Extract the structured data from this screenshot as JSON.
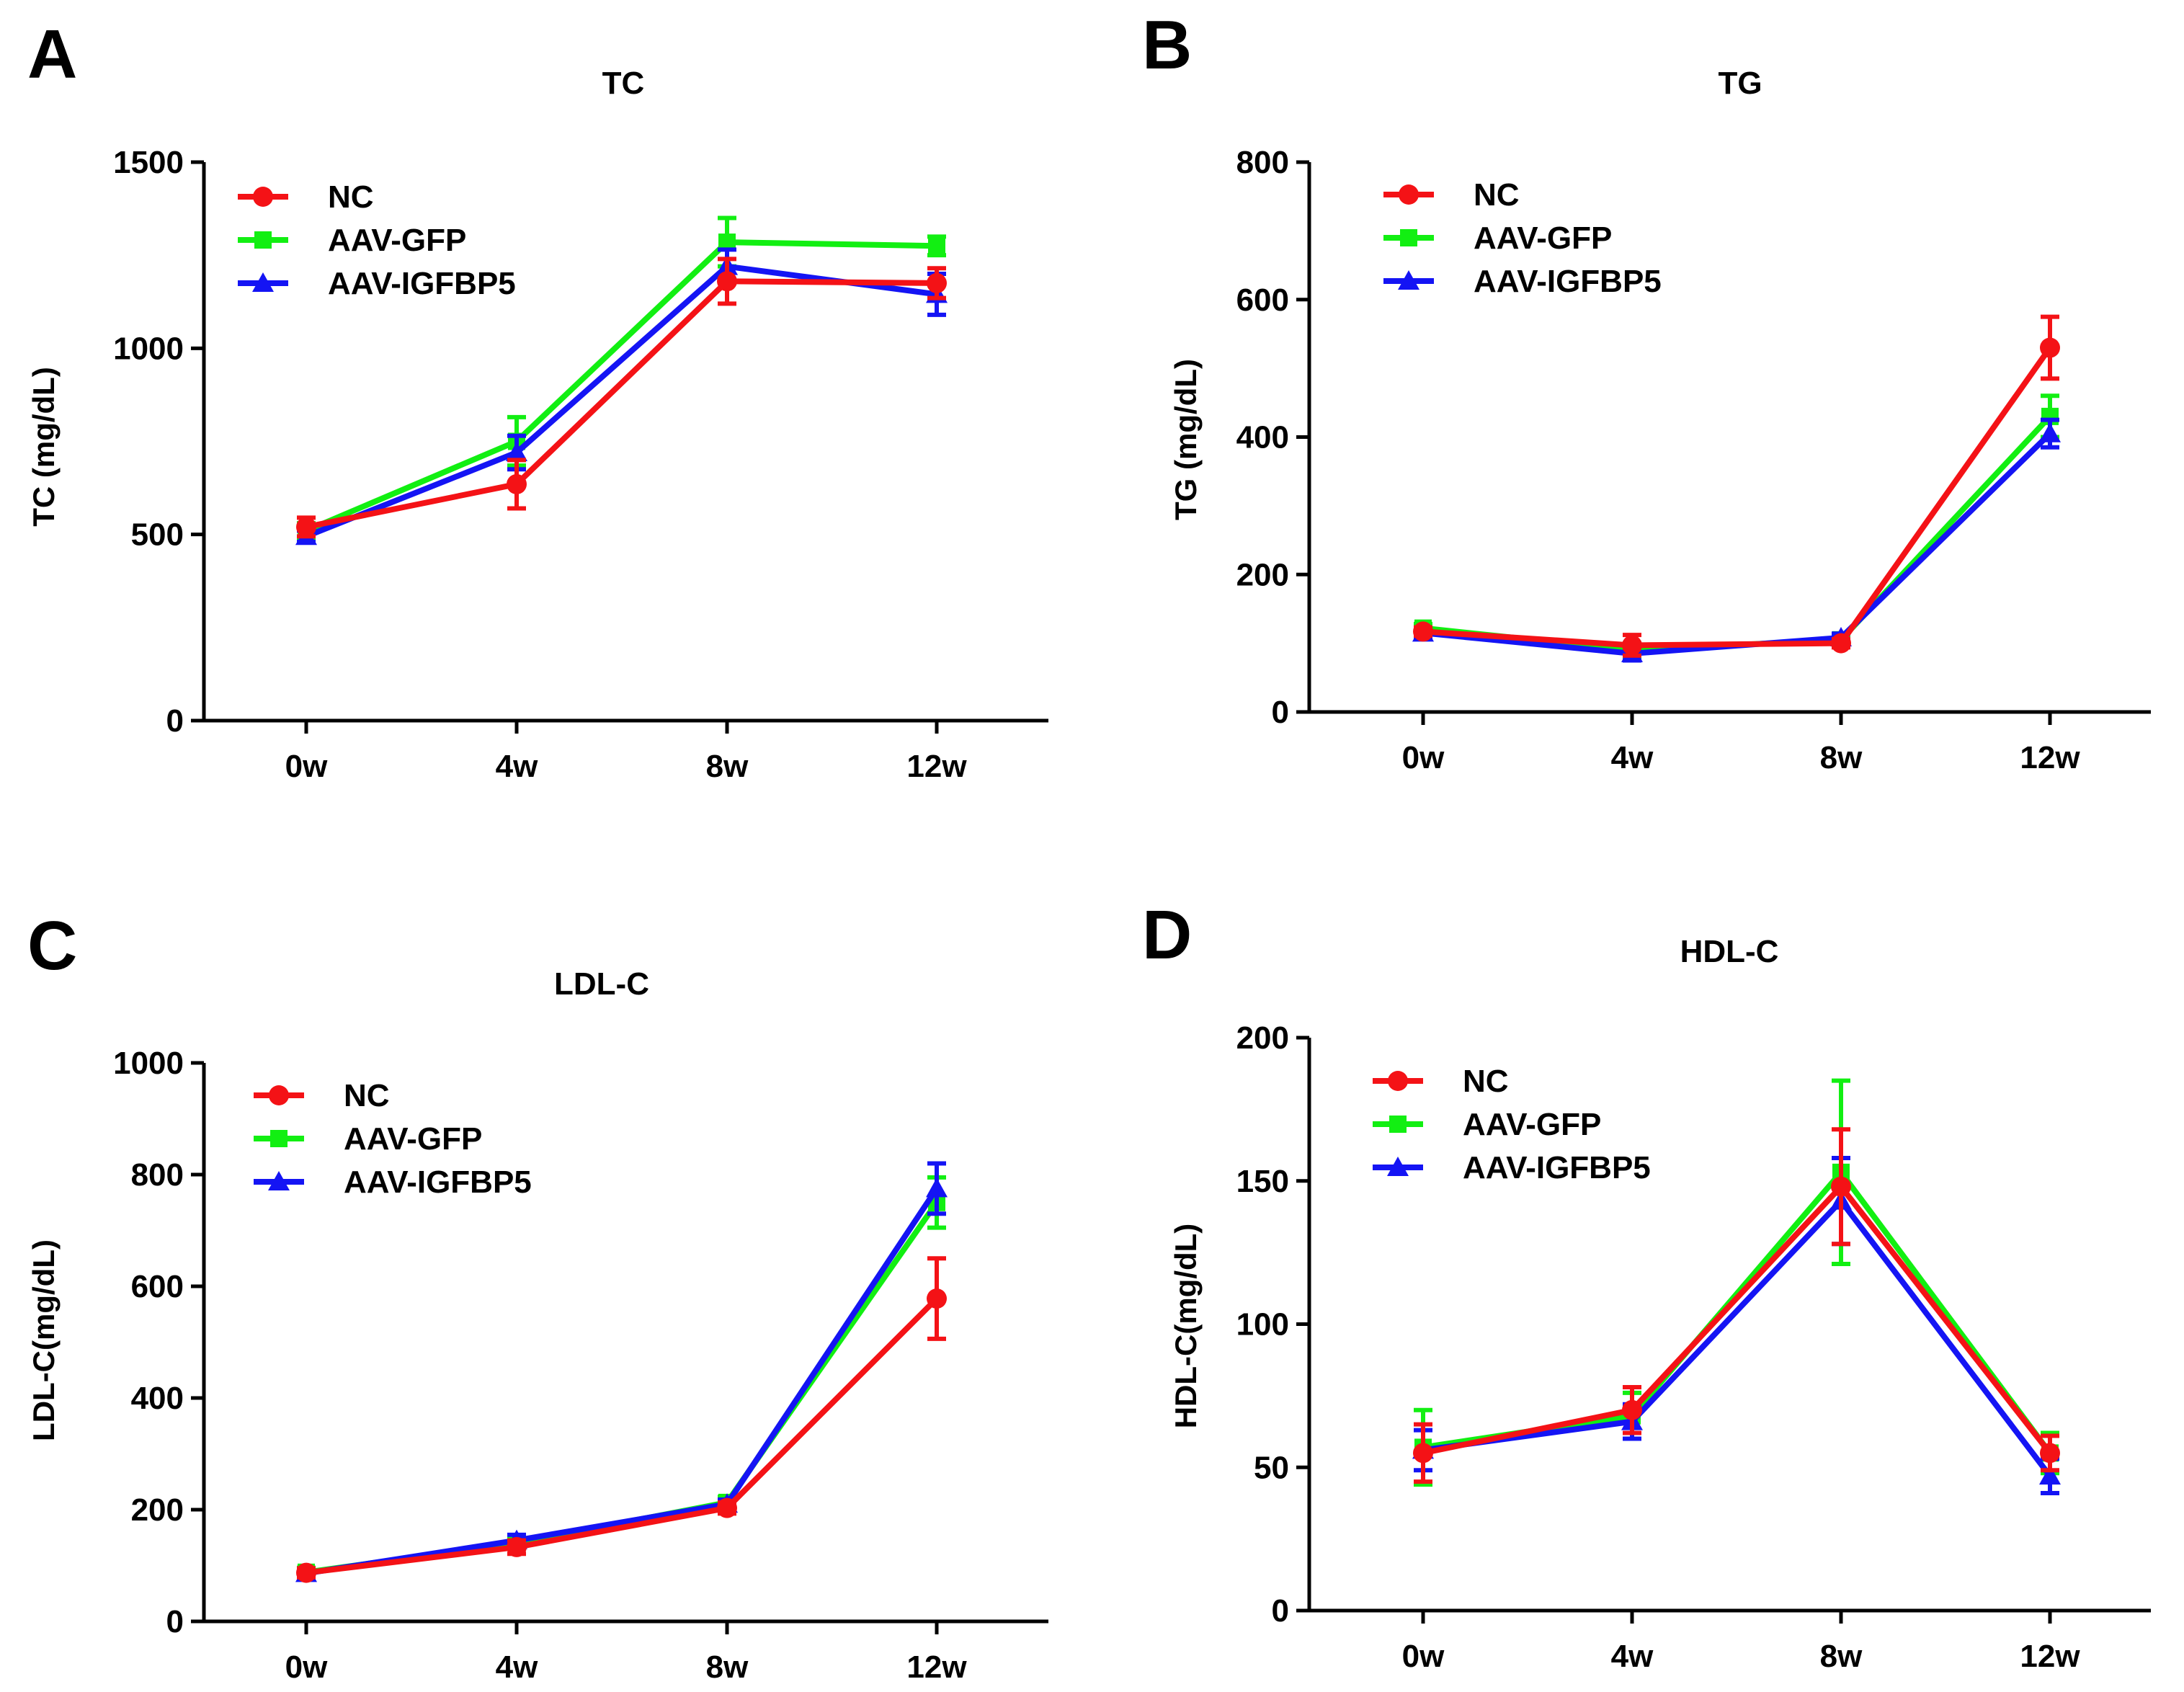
{
  "colors": {
    "NC": "#f41216",
    "AAV-GFP": "#12ef12",
    "AAV-IGFBP5": "#1414f4"
  },
  "chart_data": [
    {
      "type": "line",
      "panel": "A",
      "title": "TC",
      "ylabel": "TC (mg/dL)",
      "xlabel": "",
      "categories": [
        "0w",
        "4w",
        "8w",
        "12w"
      ],
      "ylim": [
        0,
        1500
      ],
      "yticks": [
        0,
        500,
        1000,
        1500
      ],
      "legend_position": "top-left",
      "series": [
        {
          "name": "NC",
          "marker": "circle",
          "values": [
            520,
            635,
            1180,
            1175
          ],
          "errors": [
            25,
            65,
            60,
            40
          ]
        },
        {
          "name": "AAV-GFP",
          "marker": "square",
          "values": [
            510,
            750,
            1285,
            1275
          ],
          "errors": [
            20,
            65,
            65,
            25
          ]
        },
        {
          "name": "AAV-IGFBP5",
          "marker": "triangle",
          "values": [
            495,
            720,
            1220,
            1145
          ],
          "errors": [
            15,
            45,
            45,
            55
          ]
        }
      ]
    },
    {
      "type": "line",
      "panel": "B",
      "title": "TG",
      "ylabel": "TG  (mg/dL)",
      "xlabel": "",
      "categories": [
        "0w",
        "4w",
        "8w",
        "12w"
      ],
      "ylim": [
        0,
        800
      ],
      "yticks": [
        0,
        200,
        400,
        600,
        800
      ],
      "legend_position": "top-left",
      "series": [
        {
          "name": "NC",
          "marker": "circle",
          "values": [
            117,
            97,
            100,
            530
          ],
          "errors": [
            6,
            15,
            6,
            45
          ]
        },
        {
          "name": "AAV-GFP",
          "marker": "square",
          "values": [
            122,
            90,
            105,
            430
          ],
          "errors": [
            6,
            10,
            6,
            30
          ]
        },
        {
          "name": "AAV-IGFBP5",
          "marker": "triangle",
          "values": [
            115,
            85,
            108,
            405
          ],
          "errors": [
            6,
            10,
            6,
            20
          ]
        }
      ]
    },
    {
      "type": "line",
      "panel": "C",
      "title": "LDL-C",
      "ylabel": "LDL-C(mg/dL)",
      "xlabel": "",
      "categories": [
        "0w",
        "4w",
        "8w",
        "12w"
      ],
      "ylim": [
        0,
        1000
      ],
      "yticks": [
        0,
        200,
        400,
        600,
        800,
        1000
      ],
      "legend_position": "top-left",
      "series": [
        {
          "name": "NC",
          "marker": "circle",
          "values": [
            87,
            133,
            203,
            578
          ],
          "errors": [
            8,
            12,
            10,
            72
          ]
        },
        {
          "name": "AAV-GFP",
          "marker": "square",
          "values": [
            88,
            140,
            213,
            750
          ],
          "errors": [
            8,
            10,
            10,
            45
          ]
        },
        {
          "name": "AAV-IGFBP5",
          "marker": "triangle",
          "values": [
            86,
            145,
            210,
            775
          ],
          "errors": [
            8,
            10,
            8,
            45
          ]
        }
      ]
    },
    {
      "type": "line",
      "panel": "D",
      "title": "HDL-C",
      "ylabel": "HDL-C(mg/dL)",
      "xlabel": "",
      "categories": [
        "0w",
        "4w",
        "8w",
        "12w"
      ],
      "ylim": [
        0,
        200
      ],
      "yticks": [
        0,
        50,
        100,
        150,
        200
      ],
      "legend_position": "top-left",
      "series": [
        {
          "name": "NC",
          "marker": "circle",
          "values": [
            55,
            70,
            148,
            55
          ],
          "errors": [
            10,
            8,
            20,
            6
          ]
        },
        {
          "name": "AAV-GFP",
          "marker": "square",
          "values": [
            57,
            68,
            153,
            55
          ],
          "errors": [
            13,
            8,
            32,
            7
          ]
        },
        {
          "name": "AAV-IGFBP5",
          "marker": "triangle",
          "values": [
            56,
            66,
            143,
            47
          ],
          "errors": [
            7,
            6,
            15,
            6
          ]
        }
      ]
    }
  ]
}
